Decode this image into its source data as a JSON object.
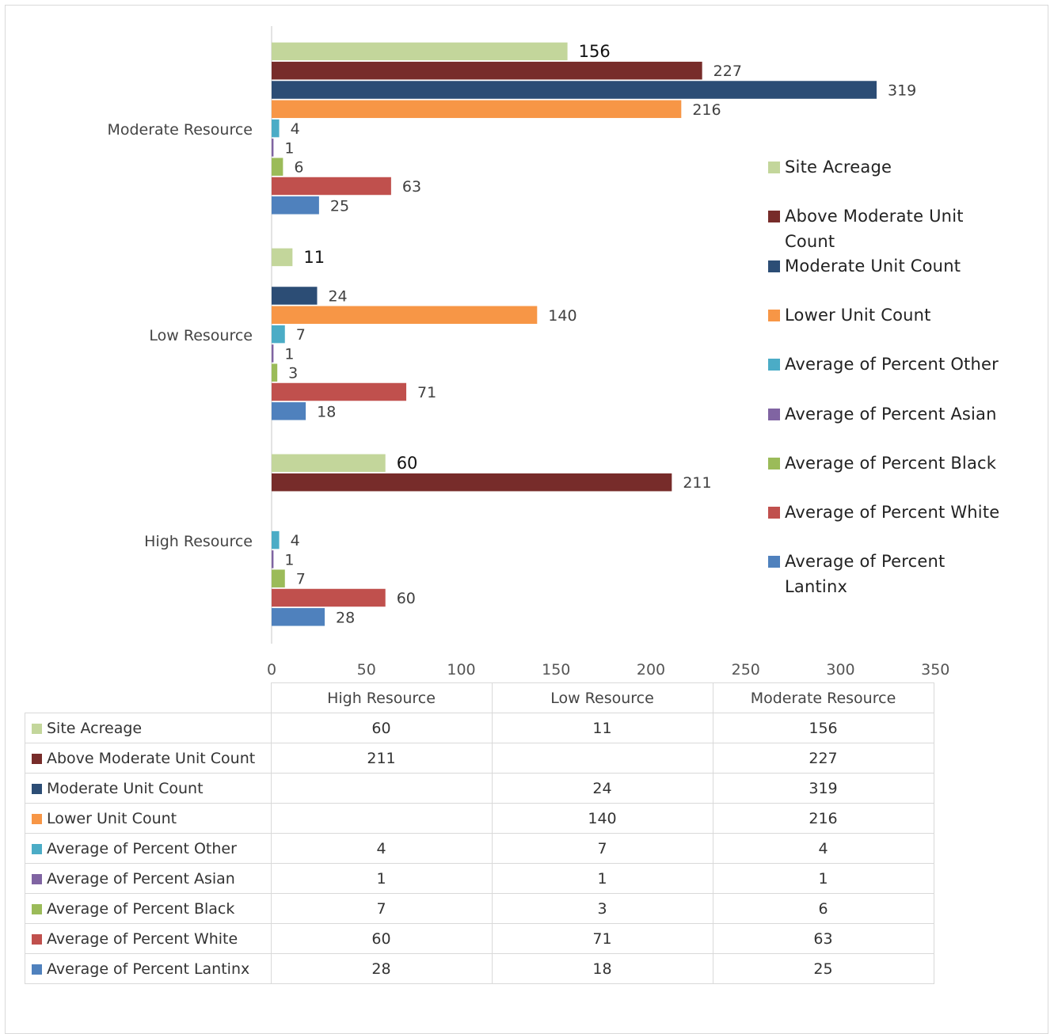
{
  "chart_data": {
    "type": "bar",
    "orientation": "horizontal",
    "categories": [
      "High Resource",
      "Low Resource",
      "Moderate Resource"
    ],
    "series": [
      {
        "name": "Site Acreage",
        "color": "#c3d69b",
        "values": [
          60,
          11,
          156
        ]
      },
      {
        "name": "Above Moderate Unit Count",
        "color": "#772c2a",
        "values": [
          211,
          null,
          227
        ]
      },
      {
        "name": "Moderate Unit Count",
        "color": "#2c4d75",
        "values": [
          null,
          24,
          319
        ]
      },
      {
        "name": "Lower Unit Count",
        "color": "#f79646",
        "values": [
          null,
          140,
          216
        ]
      },
      {
        "name": "Average of Percent Other",
        "color": "#4bacc6",
        "values": [
          4,
          7,
          4
        ]
      },
      {
        "name": "Average of Percent Asian",
        "color": "#8064a2",
        "values": [
          1,
          1,
          1
        ]
      },
      {
        "name": "Average of Percent Black",
        "color": "#9bbb59",
        "values": [
          7,
          3,
          6
        ]
      },
      {
        "name": "Average of Percent White",
        "color": "#c0504d",
        "values": [
          60,
          71,
          63
        ]
      },
      {
        "name": "Average of Percent Lantinx",
        "color": "#4f81bd",
        "values": [
          28,
          18,
          25
        ]
      }
    ],
    "xlim": [
      0,
      350
    ],
    "xticks": [
      0,
      50,
      100,
      150,
      200,
      250,
      300,
      350
    ],
    "grid": false,
    "legend": "right",
    "data_table": true,
    "title": "",
    "xlabel": "",
    "ylabel": ""
  }
}
